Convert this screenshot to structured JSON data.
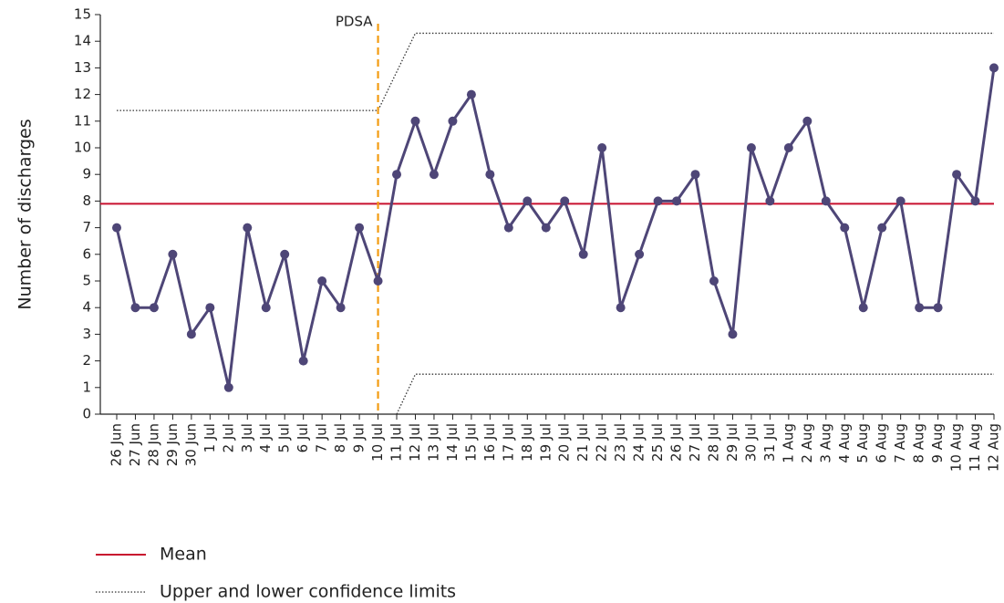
{
  "chart_data": {
    "type": "line",
    "y_label": "Number of discharges",
    "categories": [
      "26 Jun",
      "27 Jun",
      "28 Jun",
      "29 Jun",
      "30 Jun",
      "1 Jul",
      "2 Jul",
      "3 Jul",
      "4 Jul",
      "5 Jul",
      "6 Jul",
      "7 Jul",
      "8 Jul",
      "9 Jul",
      "10 Jul",
      "11 Jul",
      "12 Jul",
      "13 Jul",
      "14 Jul",
      "15 Jul",
      "16 Jul",
      "17 Jul",
      "18 Jul",
      "19 Jul",
      "20 Jul",
      "21 Jul",
      "22 Jul",
      "23 Jul",
      "24 Jul",
      "25 Jul",
      "26 Jul",
      "27 Jul",
      "28 Jul",
      "29 Jul",
      "30 Jul",
      "31 Jul",
      "1 Aug",
      "2 Aug",
      "3 Aug",
      "4 Aug",
      "5 Aug",
      "6 Aug",
      "7 Aug",
      "8 Aug",
      "9 Aug",
      "10 Aug",
      "11 Aug",
      "12 Aug"
    ],
    "values": [
      7,
      4,
      4,
      6,
      3,
      4,
      1,
      7,
      4,
      6,
      2,
      5,
      4,
      7,
      5,
      9,
      11,
      9,
      11,
      12,
      9,
      7,
      8,
      7,
      8,
      6,
      10,
      4,
      6,
      8,
      8,
      9,
      5,
      3,
      10,
      8,
      10,
      11,
      8,
      7,
      4,
      7,
      8,
      4,
      4,
      9,
      8,
      13
    ],
    "color": "#4e4677",
    "mean": {
      "name": "Mean",
      "value": 7.9,
      "color": "#c8102e"
    },
    "limits": {
      "name": "Upper and lower confidence limits",
      "color": "#333333",
      "upper": [
        11.4,
        11.4,
        11.4,
        11.4,
        11.4,
        11.4,
        11.4,
        11.4,
        11.4,
        11.4,
        11.4,
        11.4,
        11.4,
        11.4,
        11.4,
        12.85,
        14.3,
        14.3,
        14.3,
        14.3,
        14.3,
        14.3,
        14.3,
        14.3,
        14.3,
        14.3,
        14.3,
        14.3,
        14.3,
        14.3,
        14.3,
        14.3,
        14.3,
        14.3,
        14.3,
        14.3,
        14.3,
        14.3,
        14.3,
        14.3,
        14.3,
        14.3,
        14.3,
        14.3,
        14.3,
        14.3,
        14.3,
        14.3
      ],
      "lower": [
        null,
        null,
        null,
        null,
        null,
        null,
        null,
        null,
        null,
        null,
        null,
        null,
        null,
        null,
        null,
        0,
        1.5,
        1.5,
        1.5,
        1.5,
        1.5,
        1.5,
        1.5,
        1.5,
        1.5,
        1.5,
        1.5,
        1.5,
        1.5,
        1.5,
        1.5,
        1.5,
        1.5,
        1.5,
        1.5,
        1.5,
        1.5,
        1.5,
        1.5,
        1.5,
        1.5,
        1.5,
        1.5,
        1.5,
        1.5,
        1.5,
        1.5,
        1.5
      ]
    },
    "annotation": {
      "text": "PDSA",
      "at": "10 Jul",
      "color": "#f39c12"
    },
    "ylim": [
      0,
      15
    ],
    "yticks": [
      0,
      1,
      2,
      3,
      4,
      5,
      6,
      7,
      8,
      9,
      10,
      11,
      12,
      13,
      14,
      15
    ],
    "grid": false
  }
}
